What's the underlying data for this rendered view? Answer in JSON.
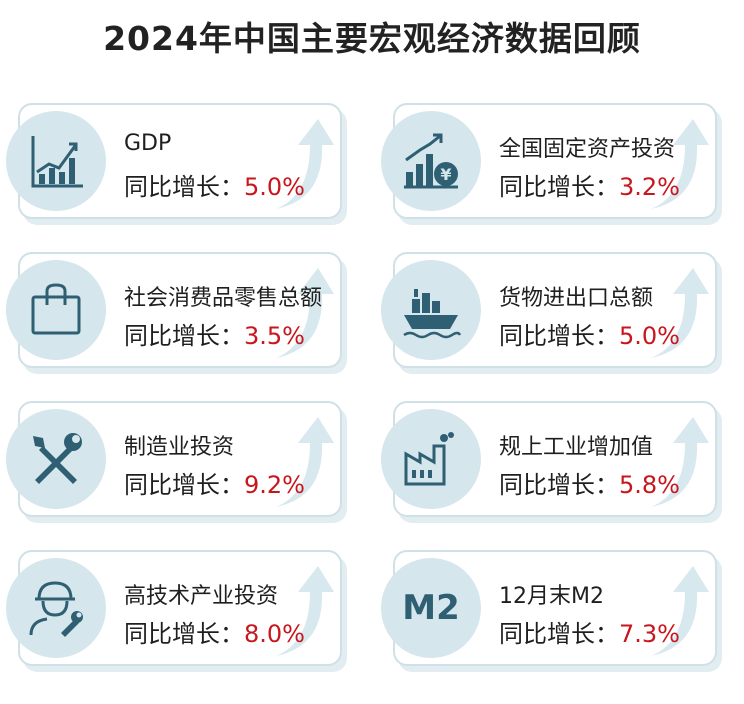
{
  "title": "2024年中国主要宏观经济数据回顾",
  "growth_label": "同比增长：",
  "accent_color": "#c8161d",
  "icon_color": "#2f5f73",
  "circle_color": "#d6e6ed",
  "cards": [
    {
      "label": "GDP",
      "value": "5.0%",
      "icon": "bar-chart-icon"
    },
    {
      "label": "全国固定资产投资",
      "value": "3.2%",
      "icon": "investment-chart-icon"
    },
    {
      "label": "社会消费品零售总额",
      "value": "3.5%",
      "icon": "shopping-bag-icon"
    },
    {
      "label": "货物进出口总额",
      "value": "5.0%",
      "icon": "cargo-ship-icon"
    },
    {
      "label": "制造业投资",
      "value": "9.2%",
      "icon": "wrench-screwdriver-icon"
    },
    {
      "label": "规上工业增加值",
      "value": "5.8%",
      "icon": "factory-icon"
    },
    {
      "label": "高技术产业投资",
      "value": "8.0%",
      "icon": "engineer-icon"
    },
    {
      "label": "12月末M2",
      "value": "7.3%",
      "icon": "m2-icon",
      "icon_text": "M2"
    }
  ]
}
